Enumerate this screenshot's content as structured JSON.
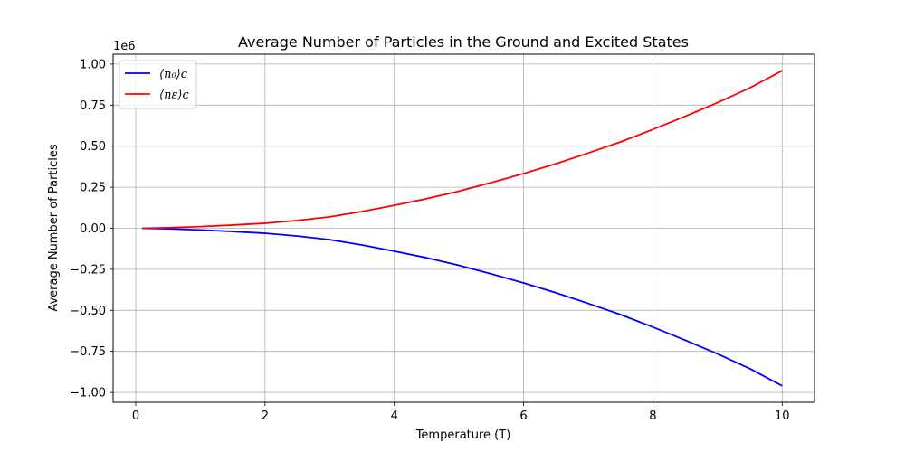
{
  "chart_data": {
    "type": "line",
    "title": "Average Number of Particles in the Ground and Excited States",
    "xlabel": "Temperature (T)",
    "ylabel": "Average Number of Particles",
    "y_offset_text": "1e6",
    "xlim": [
      -0.35,
      10.5
    ],
    "ylim": [
      -1.06,
      1.06
    ],
    "xticks": [
      0,
      2,
      4,
      6,
      8,
      10
    ],
    "xtick_labels": [
      "0",
      "2",
      "4",
      "6",
      "8",
      "10"
    ],
    "yticks": [
      -1.0,
      -0.75,
      -0.5,
      -0.25,
      0.0,
      0.25,
      0.5,
      0.75,
      1.0
    ],
    "ytick_labels": [
      "−1.00",
      "−0.75",
      "−0.50",
      "−0.25",
      "0.00",
      "0.25",
      "0.50",
      "0.75",
      "1.00"
    ],
    "grid": true,
    "legend_position": "top-left",
    "x": [
      0.1,
      0.5,
      1.0,
      1.5,
      2.0,
      2.5,
      3.0,
      3.5,
      4.0,
      4.5,
      5.0,
      5.5,
      6.0,
      6.5,
      7.0,
      7.5,
      8.0,
      8.5,
      9.0,
      9.5,
      10.0
    ],
    "series": [
      {
        "name": "⟨n₀⟩ᴄ",
        "color": "#0000ff",
        "values": [
          -3e-05,
          -0.0034,
          -0.0105,
          -0.0195,
          -0.0305,
          -0.0475,
          -0.0695,
          -0.102,
          -0.14,
          -0.18,
          -0.226,
          -0.278,
          -0.333,
          -0.393,
          -0.458,
          -0.526,
          -0.602,
          -0.682,
          -0.765,
          -0.855,
          -0.96
        ]
      },
      {
        "name": "⟨nε⟩ᴄ",
        "color": "#ff0000",
        "values": [
          3e-05,
          0.0034,
          0.0105,
          0.0195,
          0.0305,
          0.0475,
          0.0695,
          0.102,
          0.14,
          0.18,
          0.226,
          0.278,
          0.333,
          0.393,
          0.458,
          0.526,
          0.602,
          0.682,
          0.765,
          0.855,
          0.96
        ]
      }
    ]
  }
}
